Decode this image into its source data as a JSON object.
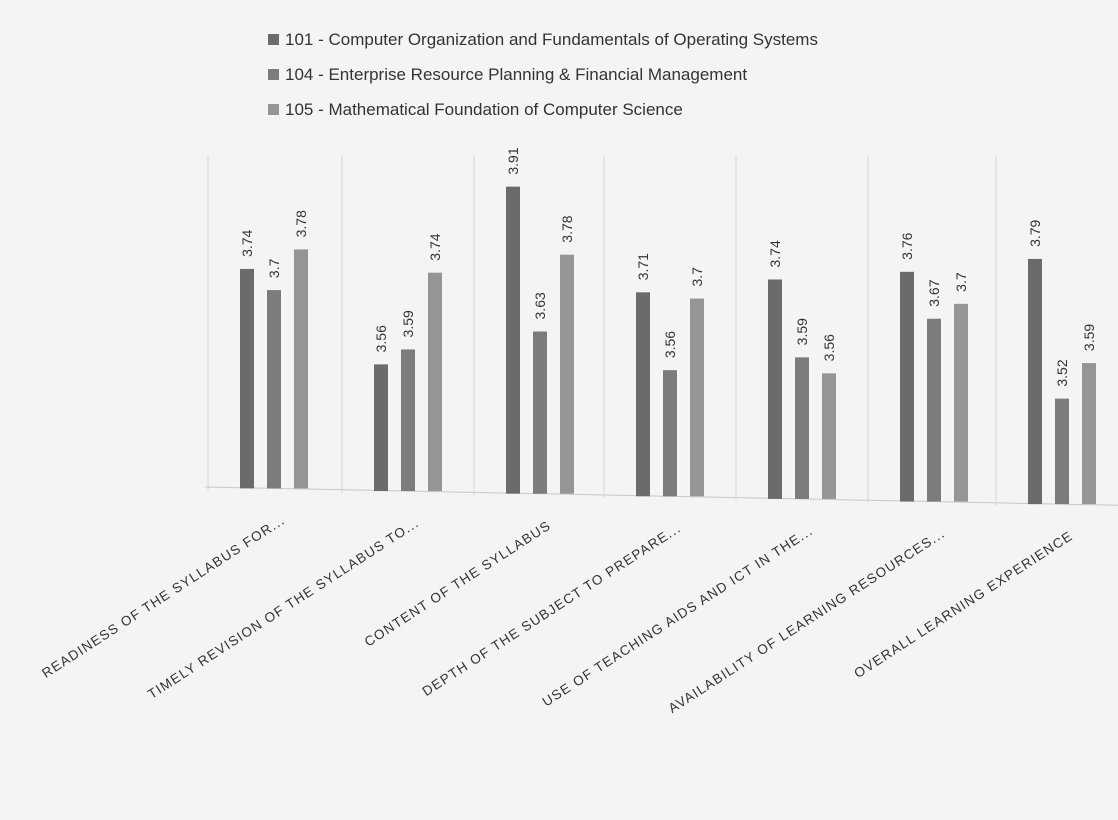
{
  "chart_data": {
    "type": "bar",
    "categories": [
      "READINESS OF THE SYLLABUS FOR...",
      "TIMELY REVISION OF THE SYLLABUS TO...",
      "CONTENT OF THE SYLLABUS",
      "DEPTH OF THE SUBJECT TO PREPARE...",
      "USE OF TEACHING AIDS AND ICT IN THE...",
      "AVAILABILITY OF LEARNING RESOURCES...",
      "OVERALL LEARNING EXPERIENCE"
    ],
    "series": [
      {
        "name": "101 - Computer Organization and Fundamentals of Operating Systems",
        "color": "#6b6b6b",
        "values": [
          3.74,
          3.56,
          3.91,
          3.71,
          3.74,
          3.76,
          3.79
        ]
      },
      {
        "name": "104  - Enterprise Resource Planning & Financial Management",
        "color": "#7c7c7c",
        "values": [
          3.7,
          3.59,
          3.63,
          3.56,
          3.59,
          3.67,
          3.52
        ]
      },
      {
        "name": "105 - Mathematical Foundation of Computer Science",
        "color": "#959595",
        "values": [
          3.78,
          3.74,
          3.78,
          3.7,
          3.56,
          3.7,
          3.59
        ]
      }
    ],
    "value_labels": [
      [
        "3.74",
        "3.56",
        "3.91",
        "3.71",
        "3.74",
        "3.76",
        "3.79"
      ],
      [
        "3.7",
        "3.59",
        "3.63",
        "3.56",
        "3.59",
        "3.67",
        "3.52"
      ],
      [
        "3.78",
        "3.74",
        "3.78",
        "3.7",
        "3.56",
        "3.7",
        "3.59"
      ]
    ],
    "ylim": [
      3.3,
      3.95
    ],
    "legend": "top",
    "grid": "vertical separators"
  }
}
